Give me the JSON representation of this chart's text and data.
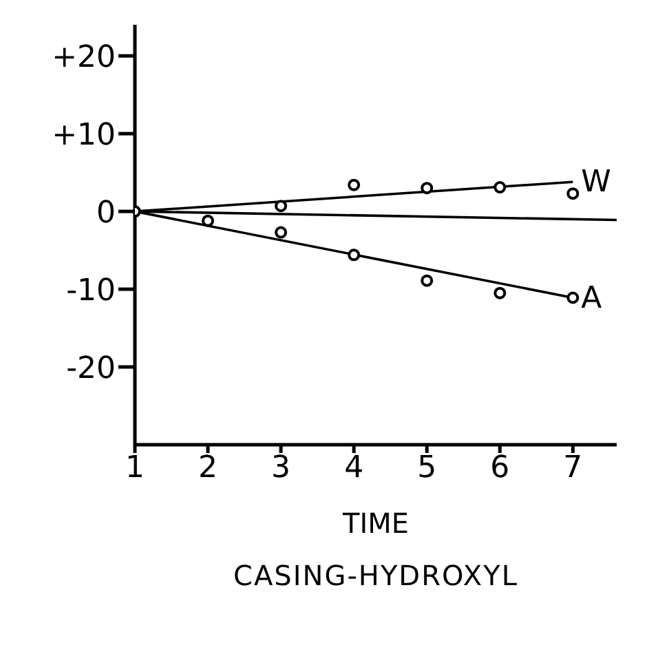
{
  "chart_data": {
    "type": "scatter",
    "xlabel": "TIME",
    "annotations": [
      "CASING-HYDROXYL"
    ],
    "xlim": [
      1,
      7.6
    ],
    "xticks": [
      1,
      2,
      3,
      4,
      5,
      6,
      7
    ],
    "ylim": [
      -30,
      24
    ],
    "yticks": [
      {
        "value": 20,
        "label": "+20"
      },
      {
        "value": 10,
        "label": "+10"
      },
      0,
      -10,
      -20
    ],
    "grid": false,
    "legend": false,
    "marker": "circle",
    "series": [
      {
        "color": "#000000",
        "x": [
          1,
          3,
          4,
          5,
          6,
          7
        ],
        "values": [
          0,
          0.7,
          3.4,
          3.0,
          3.1,
          2.3
        ]
      },
      {
        "color": "#000000",
        "x": [
          2,
          3,
          4,
          5,
          6,
          7
        ],
        "values": [
          -1.2,
          -2.7,
          -5.6,
          -8.9,
          -10.5,
          -11.1
        ]
      },
      {
        "type": "line",
        "marker": "none",
        "name": "W",
        "color": "#000000",
        "x": [
          1,
          7
        ],
        "values": [
          0,
          3.8
        ]
      },
      {
        "type": "line",
        "marker": "none",
        "name": "A",
        "color": "#000000",
        "x": [
          1,
          7
        ],
        "values": [
          0,
          -11.1
        ]
      },
      {
        "type": "line",
        "marker": "none",
        "color": "#000000",
        "x": [
          1,
          7.6
        ],
        "values": [
          0,
          -1.1
        ]
      }
    ]
  }
}
